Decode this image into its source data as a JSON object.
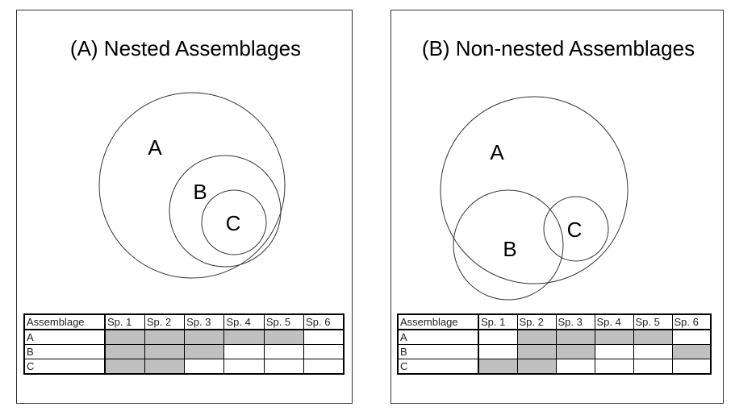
{
  "panels": [
    {
      "title": "(A) Nested Assemblages",
      "circle_labels": [
        "A",
        "B",
        "C"
      ],
      "table": {
        "headers": [
          "Assemblage",
          "Sp. 1",
          "Sp. 2",
          "Sp. 3",
          "Sp. 4",
          "Sp. 5",
          "Sp. 6"
        ],
        "rows": [
          {
            "label": "A",
            "presence": [
              1,
              1,
              1,
              1,
              1,
              0
            ]
          },
          {
            "label": "B",
            "presence": [
              1,
              1,
              1,
              0,
              0,
              0
            ]
          },
          {
            "label": "C",
            "presence": [
              1,
              1,
              0,
              0,
              0,
              0
            ]
          }
        ]
      }
    },
    {
      "title": "(B) Non-nested Assemblages",
      "circle_labels": [
        "A",
        "B",
        "C"
      ],
      "table": {
        "headers": [
          "Assemblage",
          "Sp. 1",
          "Sp. 2",
          "Sp. 3",
          "Sp. 4",
          "Sp. 5",
          "Sp. 6"
        ],
        "rows": [
          {
            "label": "A",
            "presence": [
              0,
              1,
              1,
              1,
              1,
              0
            ]
          },
          {
            "label": "B",
            "presence": [
              0,
              1,
              1,
              0,
              0,
              1
            ]
          },
          {
            "label": "C",
            "presence": [
              1,
              1,
              0,
              0,
              0,
              0
            ]
          }
        ]
      }
    }
  ],
  "colors": {
    "present": "#c0c0c0",
    "absent": "#ffffff",
    "line": "#333333"
  }
}
